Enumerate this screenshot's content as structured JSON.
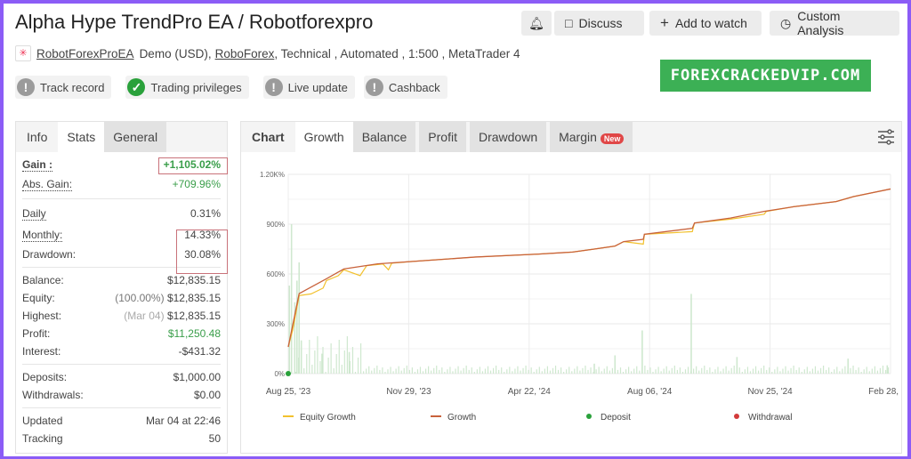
{
  "header": {
    "title": "Alpha Hype TrendPro EA / Robotforexpro",
    "buttons": {
      "bell": "bell-icon",
      "discuss": "Discuss",
      "watch": "Add to watch",
      "custom": "Custom Analysis"
    }
  },
  "meta": {
    "user": "RobotForexProEA",
    "account": "Demo (USD),",
    "broker": "RoboForex",
    "rest": ", Technical , Automated , 1:500 , MetaTrader 4"
  },
  "badges": [
    {
      "label": "Track record",
      "status": "unverified"
    },
    {
      "label": "Trading privileges",
      "status": "verified"
    },
    {
      "label": "Live update",
      "status": "unverified"
    },
    {
      "label": "Cashback",
      "status": "unverified"
    }
  ],
  "watermark": "FOREXCRACKEDVIP.COM",
  "stats": {
    "tabs": [
      "Info",
      "Stats",
      "General"
    ],
    "gain": {
      "label": "Gain :",
      "value": "+1,105.02%"
    },
    "abs_gain": {
      "label": "Abs. Gain:",
      "value": "+709.96%"
    },
    "daily": {
      "label": "Daily",
      "value": "0.31%"
    },
    "monthly": {
      "label": "Monthly:",
      "value": "14.33%"
    },
    "drawdown": {
      "label": "Drawdown:",
      "value": "30.08%"
    },
    "balance": {
      "label": "Balance:",
      "value": "$12,835.15"
    },
    "equity": {
      "label": "Equity:",
      "note": "(100.00%)",
      "value": "$12,835.15"
    },
    "highest": {
      "label": "Highest:",
      "note": "(Mar 04)",
      "value": "$12,835.15"
    },
    "profit": {
      "label": "Profit:",
      "value": "$11,250.48"
    },
    "interest": {
      "label": "Interest:",
      "value": "-$431.32"
    },
    "deposits": {
      "label": "Deposits:",
      "value": "$1,000.00"
    },
    "withdrawals": {
      "label": "Withdrawals:",
      "value": "$0.00"
    },
    "updated": {
      "label": "Updated",
      "value": "Mar 04 at 22:46"
    },
    "tracking": {
      "label": "Tracking",
      "value": "50"
    }
  },
  "chart": {
    "tabs": [
      "Chart",
      "Growth",
      "Balance",
      "Profit",
      "Drawdown",
      "Margin"
    ],
    "new_badge": "New",
    "settings_icon": "sliders-icon"
  },
  "chart_data": {
    "type": "line",
    "ylim": [
      0,
      1200
    ],
    "yticks": [
      "0%",
      "300%",
      "600%",
      "900%",
      "1.20K%"
    ],
    "ytick_values": [
      0,
      300,
      600,
      900,
      1200
    ],
    "xticks": [
      "Aug 25, '23",
      "Nov 29, '23",
      "Apr 22, '24",
      "Aug 06, '24",
      "Nov 25, '24",
      "Feb 28, '25"
    ],
    "xlim": [
      "2023-08-25",
      "2025-02-28"
    ],
    "grid": true,
    "legend_position": "bottom",
    "legend": [
      "Equity Growth",
      "Growth",
      "Deposit",
      "Withdrawal"
    ],
    "colors": {
      "equity": "#f2c12e",
      "growth": "#c8623c",
      "deposit": "#2aa13b",
      "withdrawal": "#d33a3a",
      "bars": "#cfe8cf"
    },
    "series": [
      {
        "name": "Growth",
        "points": [
          [
            "2023-08-25",
            161
          ],
          [
            "2023-09-04",
            482
          ],
          [
            "2023-09-29",
            571
          ],
          [
            "2023-10-15",
            630
          ],
          [
            "2023-11-15",
            661
          ],
          [
            "2023-12-16",
            675
          ],
          [
            "2024-02-13",
            702
          ],
          [
            "2024-04-11",
            720
          ],
          [
            "2024-05-12",
            732
          ],
          [
            "2024-06-01",
            750
          ],
          [
            "2024-06-20",
            768
          ],
          [
            "2024-06-28",
            795
          ],
          [
            "2024-07-16",
            809
          ],
          [
            "2024-07-17",
            839
          ],
          [
            "2024-08-30",
            875
          ],
          [
            "2024-09-01",
            907
          ],
          [
            "2024-10-04",
            937
          ],
          [
            "2024-11-04",
            977
          ],
          [
            "2024-12-01",
            1005
          ],
          [
            "2025-01-09",
            1036
          ],
          [
            "2025-01-25",
            1066
          ],
          [
            "2025-02-28",
            1112
          ]
        ]
      },
      {
        "name": "Equity Growth",
        "points": [
          [
            "2023-08-25",
            161
          ],
          [
            "2023-08-29",
            260
          ],
          [
            "2023-09-04",
            470
          ],
          [
            "2023-09-15",
            480
          ],
          [
            "2023-09-26",
            515
          ],
          [
            "2023-09-29",
            560
          ],
          [
            "2023-10-10",
            590
          ],
          [
            "2023-10-15",
            625
          ],
          [
            "2023-10-30",
            590
          ],
          [
            "2023-11-05",
            650
          ],
          [
            "2023-11-20",
            660
          ],
          [
            "2023-11-25",
            625
          ],
          [
            "2023-11-28",
            665
          ],
          [
            "2023-12-16",
            675
          ],
          [
            "2024-02-13",
            702
          ],
          [
            "2024-04-11",
            720
          ],
          [
            "2024-05-12",
            732
          ],
          [
            "2024-06-01",
            750
          ],
          [
            "2024-06-20",
            768
          ],
          [
            "2024-06-28",
            795
          ],
          [
            "2024-07-16",
            780
          ],
          [
            "2024-07-17",
            839
          ],
          [
            "2024-08-30",
            855
          ],
          [
            "2024-09-01",
            907
          ],
          [
            "2024-10-04",
            930
          ],
          [
            "2024-11-04",
            960
          ],
          [
            "2024-11-06",
            977
          ],
          [
            "2024-12-01",
            1005
          ],
          [
            "2025-01-09",
            1036
          ],
          [
            "2025-01-25",
            1066
          ],
          [
            "2025-02-28",
            1112
          ]
        ]
      }
    ],
    "deposits": [
      [
        "2023-08-25",
        0
      ]
    ],
    "bars": [
      [
        "2023-08-26",
        530
      ],
      [
        "2023-08-28",
        900
      ],
      [
        "2023-08-31",
        430
      ],
      [
        "2023-09-02",
        560
      ],
      [
        "2023-09-04",
        670
      ],
      [
        "2023-09-06",
        200
      ],
      [
        "2023-09-25",
        120
      ],
      [
        "2023-10-20",
        130
      ],
      [
        "2024-06-01",
        60
      ],
      [
        "2024-06-20",
        110
      ],
      [
        "2024-07-15",
        260
      ],
      [
        "2024-08-29",
        480
      ],
      [
        "2024-10-10",
        100
      ],
      [
        "2025-01-20",
        90
      ],
      [
        "2025-02-25",
        50
      ]
    ]
  }
}
